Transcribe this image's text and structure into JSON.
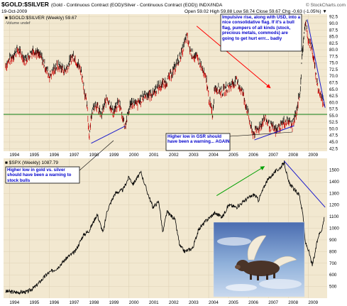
{
  "header": {
    "title": "$GOLD:$SILVER",
    "subtitle": "(Gold - Continuous Contract (EOD)/Silver - Continuous Contract (EOD)) INDX/INDA",
    "date": "19-Oct-2009",
    "stats_line": "Open 59.02   High 59.88   Low 58.74   Close 59.67   Chg -0.63 (-1.05%) ▼",
    "copyright": "© StockCharts.com"
  },
  "colors": {
    "panel_bg": "#f2e8d0",
    "outer_bg": "#ffffff",
    "gsr_up": "#000000",
    "gsr_down": "#cc0000",
    "spx_line": "#000000",
    "trend_blue": "#1a1acc",
    "trend_red": "#ff0000",
    "trend_green": "#00a000",
    "support_line": "#2a8a2a",
    "annotation_text": "#0000cc"
  },
  "chart_data": [
    {
      "type": "bar",
      "name": "gold-silver-ratio",
      "legend": "■ $GOLD:$SILVER (Weekly) 59.67",
      "legend_sub": "-Volume undef",
      "x_labels": [
        "1994",
        "1995",
        "1996",
        "1997",
        "1998",
        "1999",
        "2000",
        "2001",
        "2002",
        "2003",
        "2004",
        "2005",
        "2006",
        "2007",
        "2008",
        "2009"
      ],
      "y_ticks": [
        42.5,
        45.0,
        47.5,
        50.0,
        52.5,
        55.0,
        57.5,
        60.0,
        62.5,
        65.0,
        67.5,
        70.0,
        72.5,
        75.0,
        77.5,
        80.0,
        82.5,
        85.0,
        87.5,
        90.0,
        92.5
      ],
      "ylim": [
        41.5,
        93.5
      ],
      "xlim": [
        1993.7,
        2009.95
      ],
      "support_level": 55.5,
      "series_points": [
        [
          1993.8,
          74
        ],
        [
          1994.0,
          76
        ],
        [
          1994.4,
          80
        ],
        [
          1994.8,
          76
        ],
        [
          1995.2,
          80
        ],
        [
          1995.6,
          77
        ],
        [
          1996.0,
          70
        ],
        [
          1996.4,
          74
        ],
        [
          1996.8,
          72
        ],
        [
          1997.2,
          78
        ],
        [
          1997.6,
          72
        ],
        [
          1997.9,
          58
        ],
        [
          1998.0,
          47
        ],
        [
          1998.1,
          55
        ],
        [
          1998.3,
          60
        ],
        [
          1998.6,
          55
        ],
        [
          1998.9,
          62
        ],
        [
          1999.2,
          56
        ],
        [
          1999.5,
          60
        ],
        [
          1999.8,
          51
        ],
        [
          2000.1,
          60
        ],
        [
          2000.4,
          59
        ],
        [
          2000.8,
          63
        ],
        [
          2001.1,
          63
        ],
        [
          2001.5,
          66
        ],
        [
          2001.9,
          68
        ],
        [
          2002.3,
          73
        ],
        [
          2002.7,
          80
        ],
        [
          2002.9,
          85
        ],
        [
          2003.1,
          79
        ],
        [
          2003.5,
          76
        ],
        [
          2003.9,
          68
        ],
        [
          2004.0,
          62
        ],
        [
          2004.2,
          55
        ],
        [
          2004.3,
          66
        ],
        [
          2004.7,
          64
        ],
        [
          2005.0,
          66
        ],
        [
          2005.4,
          68
        ],
        [
          2005.7,
          64
        ],
        [
          2006.0,
          55
        ],
        [
          2006.2,
          48
        ],
        [
          2006.5,
          50
        ],
        [
          2006.8,
          54
        ],
        [
          2007.1,
          51
        ],
        [
          2007.4,
          49
        ],
        [
          2007.7,
          52
        ],
        [
          2008.0,
          53
        ],
        [
          2008.2,
          51
        ],
        [
          2008.4,
          56
        ],
        [
          2008.6,
          65
        ],
        [
          2008.7,
          78
        ],
        [
          2008.8,
          87
        ],
        [
          2008.9,
          90
        ],
        [
          2009.0,
          84
        ],
        [
          2009.2,
          80
        ],
        [
          2009.35,
          72
        ],
        [
          2009.5,
          65
        ],
        [
          2009.65,
          62
        ],
        [
          2009.8,
          59.67
        ]
      ],
      "trendlines": [
        {
          "color": "trend_blue",
          "from": [
            1998.1,
            44.5
          ],
          "to": [
            1999.8,
            51.0
          ]
        },
        {
          "color": "trend_blue",
          "from": [
            2006.3,
            45.8
          ],
          "to": [
            2008.3,
            51.2
          ]
        },
        {
          "color": "trend_blue",
          "from": [
            2008.95,
            91.5
          ],
          "to": [
            2009.85,
            58.0
          ]
        },
        {
          "color": "trend_red",
          "from": [
            2003.4,
            89.0
          ],
          "to": [
            2007.1,
            65.5
          ],
          "arrow": true
        }
      ]
    },
    {
      "type": "line",
      "name": "spx",
      "legend": "■ $SPX (Weekly) 1087.79",
      "x_labels": [
        "1994",
        "1995",
        "1996",
        "1997",
        "1998",
        "1999",
        "2000",
        "2001",
        "2002",
        "2003",
        "2004",
        "2005",
        "2006",
        "2007",
        "2008",
        "2009"
      ],
      "y_ticks": [
        500,
        600,
        700,
        800,
        900,
        1000,
        1100,
        1200,
        1300,
        1400,
        1500
      ],
      "ylim": [
        400,
        1600
      ],
      "xlim": [
        1993.7,
        2009.95
      ],
      "series_points": [
        [
          1993.8,
          460
        ],
        [
          1994.3,
          450
        ],
        [
          1994.9,
          455
        ],
        [
          1995.3,
          500
        ],
        [
          1995.9,
          610
        ],
        [
          1996.4,
          660
        ],
        [
          1996.9,
          750
        ],
        [
          1997.3,
          800
        ],
        [
          1997.7,
          940
        ],
        [
          1998.0,
          980
        ],
        [
          1998.4,
          1120
        ],
        [
          1998.7,
          960
        ],
        [
          1998.9,
          1150
        ],
        [
          1999.3,
          1300
        ],
        [
          1999.7,
          1330
        ],
        [
          2000.0,
          1440
        ],
        [
          2000.2,
          1380
        ],
        [
          2000.6,
          1480
        ],
        [
          2000.9,
          1320
        ],
        [
          2001.2,
          1180
        ],
        [
          2001.5,
          1230
        ],
        [
          2001.7,
          960
        ],
        [
          2001.9,
          1140
        ],
        [
          2002.3,
          1080
        ],
        [
          2002.55,
          850
        ],
        [
          2002.8,
          800
        ],
        [
          2003.2,
          830
        ],
        [
          2003.5,
          990
        ],
        [
          2003.9,
          1070
        ],
        [
          2004.3,
          1130
        ],
        [
          2004.7,
          1100
        ],
        [
          2005.0,
          1200
        ],
        [
          2005.4,
          1180
        ],
        [
          2005.9,
          1250
        ],
        [
          2006.3,
          1290
        ],
        [
          2006.5,
          1240
        ],
        [
          2006.9,
          1400
        ],
        [
          2007.3,
          1480
        ],
        [
          2007.6,
          1520
        ],
        [
          2007.8,
          1565
        ],
        [
          2008.0,
          1400
        ],
        [
          2008.3,
          1330
        ],
        [
          2008.55,
          1290
        ],
        [
          2008.75,
          1100
        ],
        [
          2008.85,
          880
        ],
        [
          2009.0,
          820
        ],
        [
          2009.2,
          680
        ],
        [
          2009.3,
          750
        ],
        [
          2009.5,
          930
        ],
        [
          2009.7,
          1000
        ],
        [
          2009.8,
          1087.79
        ]
      ],
      "trendlines": [
        {
          "color": "trend_green",
          "from": [
            2004.4,
            1280
          ],
          "to": [
            2006.8,
            1530
          ],
          "arrow": true
        },
        {
          "color": "trend_blue",
          "from": [
            2007.8,
            1575
          ],
          "to": [
            2009.85,
            1180
          ]
        }
      ]
    }
  ],
  "annotations": {
    "top_right": "Impulsive rise, along with USD, into a nice consolidative flag.  If it's a bull flag, pumpers of all kinds (stock, precious metals, commods) are going to get hurt errr... badly",
    "gsr_low": "Higher low in GSR should have been a warning... AGAIN",
    "gold_silver_low": "Higher low in gold vs. silver should have been a warning to stock bulls"
  },
  "image": {
    "description_name": "flying-pig-photo"
  }
}
